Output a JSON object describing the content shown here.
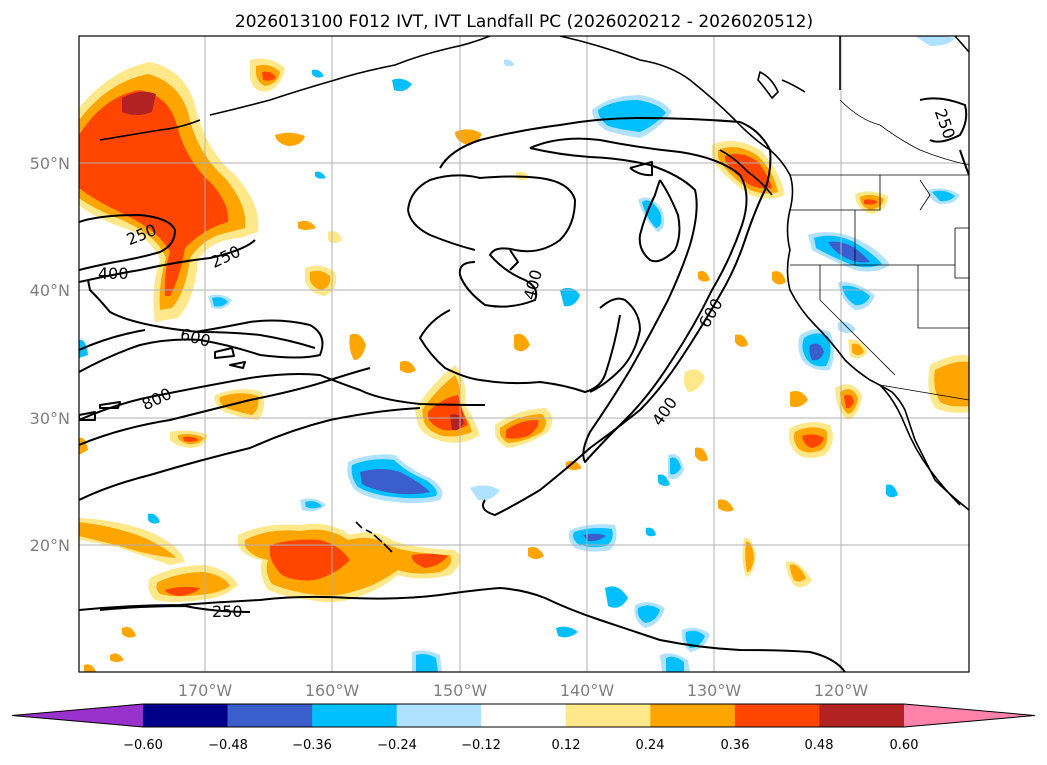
{
  "title": "2026013100 F012 IVT, IVT Landfall PC (2026020212 - 2026020512)",
  "axes": {
    "lon_labels": [
      "170°W",
      "160°W",
      "150°W",
      "140°W",
      "130°W",
      "120°W"
    ],
    "lat_labels": [
      "50°N",
      "40°N",
      "30°N",
      "20°N"
    ]
  },
  "contour_labels": [
    "250",
    "250",
    "250",
    "250",
    "400",
    "400",
    "400",
    "600",
    "600",
    "800"
  ],
  "colorbar": {
    "ticks": [
      "−0.60",
      "−0.48",
      "−0.36",
      "−0.24",
      "−0.12",
      "0.12",
      "0.24",
      "0.36",
      "0.48",
      "0.60"
    ],
    "colors": [
      "#9932cc",
      "#00008b",
      "#3a5fcd",
      "#00bfff",
      "#b0e2ff",
      "#ffffff",
      "#ffe88a",
      "#ffa500",
      "#ff4500",
      "#b22222",
      "#ff82ab"
    ],
    "extend": "both"
  },
  "chart_data": {
    "type": "heatmap",
    "title": "2026013100 F012 IVT, IVT Landfall PC (2026020212 - 2026020512)",
    "lon_range": [
      -180,
      -110
    ],
    "lat_range": [
      10,
      60
    ],
    "x_ticks": [
      "170°W",
      "160°W",
      "150°W",
      "140°W",
      "130°W",
      "120°W"
    ],
    "y_ticks": [
      "50°N",
      "40°N",
      "30°N",
      "20°N"
    ],
    "grid": true,
    "contour_levels": [
      250,
      400,
      600,
      800
    ],
    "fill_levels": [
      -0.6,
      -0.48,
      -0.36,
      -0.24,
      -0.12,
      0.12,
      0.24,
      0.36,
      0.48,
      0.6
    ]
  }
}
